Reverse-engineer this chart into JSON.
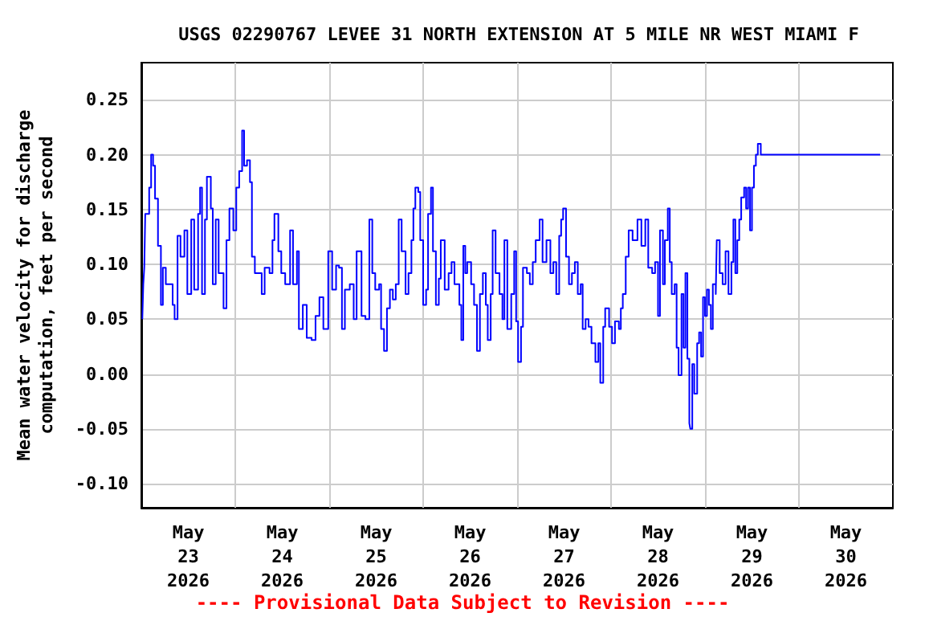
{
  "chart_data": {
    "type": "step",
    "title": "USGS 02290767 LEVEE 31 NORTH EXTENSION AT 5 MILE NR WEST MIAMI F",
    "ylabel": "Mean water velocity for discharge computation, feet per second",
    "annotations": [
      "---- Provisional Data Subject to Revision ----"
    ],
    "x": [
      "2026-05-23T00:15",
      "2026-05-23T00:30",
      "2026-05-23T00:45",
      "2026-05-23T01:00",
      "2026-05-23T02:00",
      "2026-05-23T02:30",
      "2026-05-23T03:00",
      "2026-05-23T03:30",
      "2026-05-23T04:15",
      "2026-05-23T05:00",
      "2026-05-23T05:30",
      "2026-05-23T06:15",
      "2026-05-23T07:15",
      "2026-05-23T08:00",
      "2026-05-23T08:30",
      "2026-05-23T09:15",
      "2026-05-23T10:00",
      "2026-05-23T11:00",
      "2026-05-23T11:45",
      "2026-05-23T12:45",
      "2026-05-23T13:30",
      "2026-05-23T14:30",
      "2026-05-23T15:00",
      "2026-05-23T15:30",
      "2026-05-23T16:15",
      "2026-05-23T16:45",
      "2026-05-23T17:45",
      "2026-05-23T18:15",
      "2026-05-23T19:00",
      "2026-05-23T19:45",
      "2026-05-23T21:00",
      "2026-05-23T21:45",
      "2026-05-23T22:30",
      "2026-05-23T23:30",
      "2026-05-24T00:15",
      "2026-05-24T01:00",
      "2026-05-24T01:45",
      "2026-05-24T02:15",
      "2026-05-24T03:00",
      "2026-05-24T03:45",
      "2026-05-24T04:15",
      "2026-05-24T05:00",
      "2026-05-24T06:15",
      "2026-05-24T06:45",
      "2026-05-24T07:30",
      "2026-05-24T08:45",
      "2026-05-24T09:30",
      "2026-05-24T10:00",
      "2026-05-24T11:00",
      "2026-05-24T11:45",
      "2026-05-24T12:45",
      "2026-05-24T14:00",
      "2026-05-24T14:45",
      "2026-05-24T15:45",
      "2026-05-24T16:15",
      "2026-05-24T17:15",
      "2026-05-24T18:15",
      "2026-05-24T19:30",
      "2026-05-24T20:30",
      "2026-05-24T21:30",
      "2026-05-24T22:30",
      "2026-05-24T23:45",
      "2026-05-25T00:45",
      "2026-05-25T01:45",
      "2026-05-25T02:30",
      "2026-05-25T03:15",
      "2026-05-25T04:00",
      "2026-05-25T05:15",
      "2026-05-25T06:15",
      "2026-05-25T07:00",
      "2026-05-25T08:15",
      "2026-05-25T09:15",
      "2026-05-25T10:15",
      "2026-05-25T11:00",
      "2026-05-25T11:45",
      "2026-05-25T12:45",
      "2026-05-25T13:15",
      "2026-05-25T14:00",
      "2026-05-25T14:45",
      "2026-05-25T15:30",
      "2026-05-25T16:15",
      "2026-05-25T17:00",
      "2026-05-25T17:45",
      "2026-05-25T18:30",
      "2026-05-25T19:30",
      "2026-05-25T20:15",
      "2026-05-25T21:00",
      "2026-05-25T21:30",
      "2026-05-25T22:00",
      "2026-05-25T22:45",
      "2026-05-25T23:15",
      "2026-05-26T00:00",
      "2026-05-26T00:45",
      "2026-05-26T01:15",
      "2026-05-26T02:00",
      "2026-05-26T02:30",
      "2026-05-26T03:15",
      "2026-05-26T04:00",
      "2026-05-26T04:30",
      "2026-05-26T05:30",
      "2026-05-26T06:30",
      "2026-05-26T07:15",
      "2026-05-26T08:00",
      "2026-05-26T09:15",
      "2026-05-26T09:45",
      "2026-05-26T10:15",
      "2026-05-26T10:45",
      "2026-05-26T11:15",
      "2026-05-26T12:15",
      "2026-05-26T13:00",
      "2026-05-26T13:45",
      "2026-05-26T14:30",
      "2026-05-26T15:15",
      "2026-05-26T16:00",
      "2026-05-26T16:30",
      "2026-05-26T17:15",
      "2026-05-26T17:45",
      "2026-05-26T18:30",
      "2026-05-26T19:30",
      "2026-05-26T20:15",
      "2026-05-26T20:45",
      "2026-05-26T21:30",
      "2026-05-26T22:30",
      "2026-05-26T23:15",
      "2026-05-26T23:45",
      "2026-05-27T00:15",
      "2026-05-27T01:00",
      "2026-05-27T01:30",
      "2026-05-27T02:30",
      "2026-05-27T03:15",
      "2026-05-27T04:00",
      "2026-05-27T04:45",
      "2026-05-27T05:45",
      "2026-05-27T06:30",
      "2026-05-27T07:30",
      "2026-05-27T08:30",
      "2026-05-27T09:15",
      "2026-05-27T10:00",
      "2026-05-27T10:45",
      "2026-05-27T11:15",
      "2026-05-27T11:45",
      "2026-05-27T12:30",
      "2026-05-27T13:15",
      "2026-05-27T14:00",
      "2026-05-27T14:45",
      "2026-05-27T15:30",
      "2026-05-27T16:15",
      "2026-05-27T16:45",
      "2026-05-27T17:30",
      "2026-05-27T18:15",
      "2026-05-27T19:00",
      "2026-05-27T20:00",
      "2026-05-27T20:45",
      "2026-05-27T21:15",
      "2026-05-27T22:00",
      "2026-05-27T22:30",
      "2026-05-27T23:30",
      "2026-05-28T00:15",
      "2026-05-28T01:00",
      "2026-05-28T02:00",
      "2026-05-28T02:30",
      "2026-05-28T03:00",
      "2026-05-28T03:45",
      "2026-05-28T04:30",
      "2026-05-28T05:30",
      "2026-05-28T06:45",
      "2026-05-28T07:45",
      "2026-05-28T08:45",
      "2026-05-28T09:30",
      "2026-05-28T10:30",
      "2026-05-28T11:15",
      "2026-05-28T12:00",
      "2026-05-28T12:30",
      "2026-05-28T13:15",
      "2026-05-28T13:45",
      "2026-05-28T14:30",
      "2026-05-28T15:00",
      "2026-05-28T15:30",
      "2026-05-28T16:15",
      "2026-05-28T16:45",
      "2026-05-28T17:15",
      "2026-05-28T18:00",
      "2026-05-28T18:30",
      "2026-05-28T19:00",
      "2026-05-28T19:30",
      "2026-05-28T20:00",
      "2026-05-28T20:15",
      "2026-05-28T20:45",
      "2026-05-28T21:15",
      "2026-05-28T22:00",
      "2026-05-28T22:30",
      "2026-05-28T23:00",
      "2026-05-28T23:30",
      "2026-05-29T00:00",
      "2026-05-29T00:30",
      "2026-05-29T01:00",
      "2026-05-29T01:30",
      "2026-05-29T02:00",
      "2026-05-29T02:45",
      "2026-05-29T03:00",
      "2026-05-29T03:45",
      "2026-05-29T04:30",
      "2026-05-29T05:15",
      "2026-05-29T06:00",
      "2026-05-29T06:45",
      "2026-05-29T07:15",
      "2026-05-29T07:45",
      "2026-05-29T08:15",
      "2026-05-29T08:45",
      "2026-05-29T09:15",
      "2026-05-29T10:00",
      "2026-05-29T10:30",
      "2026-05-29T11:00",
      "2026-05-29T11:30",
      "2026-05-29T12:00",
      "2026-05-29T12:30",
      "2026-05-29T13:00",
      "2026-05-29T13:30",
      "2026-05-29T14:15",
      "2026-05-30T20:45"
    ],
    "series": [
      {
        "color": "#0000ff",
        "values": [
          0.05,
          0.082,
          0.097,
          0.146,
          0.17,
          0.2,
          0.19,
          0.16,
          0.117,
          0.063,
          0.097,
          0.082,
          0.082,
          0.063,
          0.05,
          0.126,
          0.107,
          0.131,
          0.073,
          0.141,
          0.077,
          0.146,
          0.17,
          0.073,
          0.141,
          0.18,
          0.151,
          0.082,
          0.141,
          0.092,
          0.06,
          0.122,
          0.151,
          0.131,
          0.17,
          0.185,
          0.222,
          0.19,
          0.195,
          0.175,
          0.107,
          0.092,
          0.092,
          0.073,
          0.097,
          0.092,
          0.122,
          0.146,
          0.112,
          0.092,
          0.082,
          0.131,
          0.082,
          0.112,
          0.041,
          0.063,
          0.033,
          0.031,
          0.053,
          0.07,
          0.041,
          0.112,
          0.077,
          0.099,
          0.097,
          0.041,
          0.077,
          0.082,
          0.05,
          0.112,
          0.053,
          0.05,
          0.141,
          0.092,
          0.077,
          0.082,
          0.041,
          0.021,
          0.06,
          0.077,
          0.068,
          0.082,
          0.141,
          0.112,
          0.073,
          0.092,
          0.122,
          0.151,
          0.17,
          0.166,
          0.122,
          0.063,
          0.077,
          0.146,
          0.17,
          0.112,
          0.063,
          0.087,
          0.122,
          0.077,
          0.092,
          0.102,
          0.082,
          0.063,
          0.031,
          0.117,
          0.092,
          0.102,
          0.082,
          0.063,
          0.021,
          0.073,
          0.092,
          0.063,
          0.031,
          0.073,
          0.131,
          0.092,
          0.073,
          0.05,
          0.122,
          0.041,
          0.073,
          0.112,
          0.048,
          0.011,
          0.043,
          0.097,
          0.092,
          0.082,
          0.102,
          0.122,
          0.141,
          0.102,
          0.122,
          0.092,
          0.102,
          0.073,
          0.126,
          0.141,
          0.151,
          0.107,
          0.082,
          0.092,
          0.102,
          0.073,
          0.082,
          0.041,
          0.05,
          0.043,
          0.028,
          0.011,
          0.028,
          -0.008,
          0.043,
          0.06,
          0.043,
          0.028,
          0.048,
          0.041,
          0.06,
          0.073,
          0.107,
          0.131,
          0.122,
          0.141,
          0.117,
          0.141,
          0.097,
          0.092,
          0.102,
          0.053,
          0.131,
          0.082,
          0.122,
          0.151,
          0.102,
          0.073,
          0.082,
          0.024,
          -0.001,
          0.073,
          0.024,
          0.092,
          0.014,
          -0.045,
          -0.05,
          0.009,
          -0.018,
          0.028,
          0.038,
          0.016,
          0.07,
          0.053,
          0.077,
          0.063,
          0.041,
          0.082,
          0.073,
          0.122,
          0.092,
          0.082,
          0.112,
          0.073,
          0.102,
          0.141,
          0.092,
          0.122,
          0.141,
          0.161,
          0.17,
          0.151,
          0.17,
          0.131,
          0.17,
          0.19,
          0.2,
          0.21,
          0.2,
          0.2
        ]
      }
    ],
    "xlim": [
      "2026-05-23T00:00",
      "2026-05-31T00:00"
    ],
    "xticks": [
      {
        "value": "2026-05-23T12:00",
        "label": "May\n23\n2026"
      },
      {
        "value": "2026-05-24T00:00",
        "label": null
      },
      {
        "value": "2026-05-24T12:00",
        "label": "May\n24\n2026"
      },
      {
        "value": "2026-05-25T00:00",
        "label": null
      },
      {
        "value": "2026-05-25T12:00",
        "label": "May\n25\n2026"
      },
      {
        "value": "2026-05-26T00:00",
        "label": null
      },
      {
        "value": "2026-05-26T12:00",
        "label": "May\n26\n2026"
      },
      {
        "value": "2026-05-27T00:00",
        "label": null
      },
      {
        "value": "2026-05-27T12:00",
        "label": "May\n27\n2026"
      },
      {
        "value": "2026-05-28T00:00",
        "label": null
      },
      {
        "value": "2026-05-28T12:00",
        "label": "May\n28\n2026"
      },
      {
        "value": "2026-05-29T00:00",
        "label": null
      },
      {
        "value": "2026-05-29T12:00",
        "label": "May\n29\n2026"
      },
      {
        "value": "2026-05-30T00:00",
        "label": null
      },
      {
        "value": "2026-05-30T12:00",
        "label": "May\n30\n2026"
      }
    ],
    "ylim": [
      -0.122,
      0.284
    ],
    "yticks": [
      {
        "value": -0.1,
        "label": "-0.10"
      },
      {
        "value": -0.05,
        "label": "-0.05"
      },
      {
        "value": 0,
        "label": "0.00"
      },
      {
        "value": 0.05,
        "label": "0.05"
      },
      {
        "value": 0.1,
        "label": "0.10"
      },
      {
        "value": 0.15,
        "label": "0.15"
      },
      {
        "value": 0.2,
        "label": "0.20"
      },
      {
        "value": 0.25,
        "label": "0.25"
      }
    ],
    "grid": true,
    "line_style": "solid",
    "marker": "none"
  }
}
